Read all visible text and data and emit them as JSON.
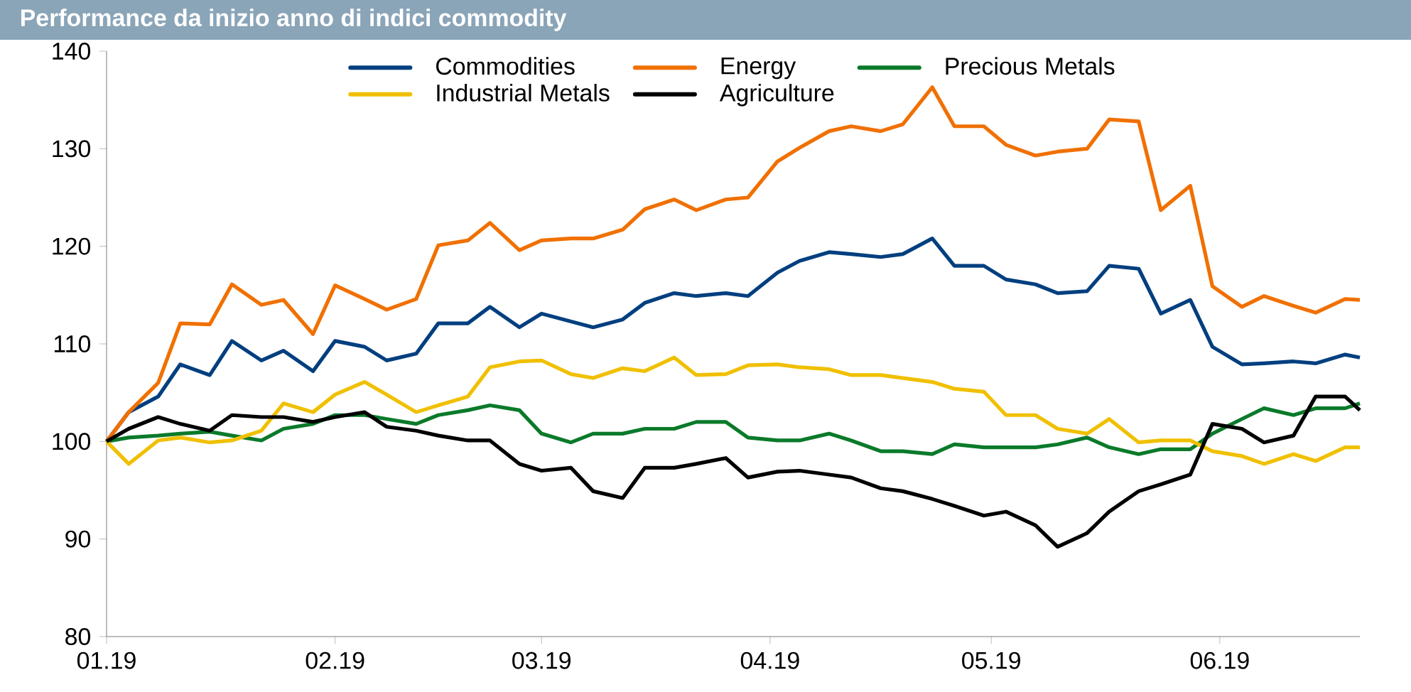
{
  "chart_data": {
    "type": "line",
    "title": "Performance da inizio anno di indici commodity",
    "x": [
      "2019-01-01",
      "2019-01-04",
      "2019-01-08",
      "2019-01-11",
      "2019-01-15",
      "2019-01-18",
      "2019-01-22",
      "2019-01-25",
      "2019-01-29",
      "2019-02-01",
      "2019-02-05",
      "2019-02-08",
      "2019-02-12",
      "2019-02-15",
      "2019-02-19",
      "2019-02-22",
      "2019-02-26",
      "2019-03-01",
      "2019-03-05",
      "2019-03-08",
      "2019-03-12",
      "2019-03-15",
      "2019-03-19",
      "2019-03-22",
      "2019-03-26",
      "2019-03-29",
      "2019-04-02",
      "2019-04-05",
      "2019-04-09",
      "2019-04-12",
      "2019-04-16",
      "2019-04-19",
      "2019-04-23",
      "2019-04-26",
      "2019-04-30",
      "2019-05-03",
      "2019-05-07",
      "2019-05-10",
      "2019-05-14",
      "2019-05-17",
      "2019-05-21",
      "2019-05-24",
      "2019-05-28",
      "2019-05-31",
      "2019-06-04",
      "2019-06-07",
      "2019-06-11",
      "2019-06-14",
      "2019-06-18",
      "2019-06-20"
    ],
    "series": [
      {
        "name": "Commodities",
        "color": "#003f7f",
        "values": [
          100,
          103,
          104.6,
          107.9,
          106.8,
          110.3,
          108.3,
          109.3,
          107.2,
          110.3,
          109.7,
          108.3,
          109,
          112.1,
          112.1,
          113.8,
          111.7,
          113.1,
          112.3,
          111.7,
          112.5,
          114.2,
          115.2,
          114.9,
          115.2,
          114.9,
          117.3,
          118.5,
          119.4,
          119.2,
          118.9,
          119.2,
          120.8,
          118,
          118,
          116.6,
          116.1,
          115.2,
          115.4,
          118,
          117.7,
          113.1,
          114.5,
          109.7,
          107.9,
          108,
          108.2,
          108,
          108.9,
          108.6
        ]
      },
      {
        "name": "Energy",
        "color": "#f07000",
        "values": [
          100,
          103,
          106,
          112.1,
          112,
          116.1,
          114,
          114.5,
          111,
          116,
          114.6,
          113.5,
          114.6,
          120.1,
          120.6,
          122.4,
          119.6,
          120.6,
          120.8,
          120.8,
          121.7,
          123.8,
          124.8,
          123.7,
          124.8,
          125,
          128.7,
          130.1,
          131.8,
          132.3,
          131.8,
          132.5,
          136.3,
          132.3,
          132.3,
          130.4,
          129.3,
          129.7,
          130,
          133,
          132.8,
          123.7,
          126.2,
          115.9,
          113.8,
          114.9,
          113.9,
          113.2,
          114.6,
          114.5
        ]
      },
      {
        "name": "Precious Metals",
        "color": "#0a7a2a",
        "values": [
          100,
          100.4,
          100.6,
          100.8,
          101,
          100.6,
          100.1,
          101.3,
          101.8,
          102.7,
          102.7,
          102.3,
          101.8,
          102.7,
          103.2,
          103.7,
          103.2,
          100.8,
          99.9,
          100.8,
          100.8,
          101.3,
          101.3,
          102,
          102,
          100.4,
          100.1,
          100.1,
          100.8,
          100.1,
          99,
          99,
          98.7,
          99.7,
          99.4,
          99.4,
          99.4,
          99.7,
          100.4,
          99.4,
          98.7,
          99.2,
          99.2,
          100.8,
          102.3,
          103.4,
          102.7,
          103.4,
          103.4,
          103.9
        ]
      },
      {
        "name": "Industrial Metals",
        "color": "#f0c000",
        "values": [
          100,
          97.7,
          100.1,
          100.4,
          99.9,
          100.1,
          101.1,
          103.9,
          103,
          104.8,
          106.1,
          104.8,
          103,
          103.7,
          104.6,
          107.6,
          108.2,
          108.3,
          106.9,
          106.5,
          107.5,
          107.2,
          108.6,
          106.8,
          106.9,
          107.8,
          107.9,
          107.6,
          107.4,
          106.8,
          106.8,
          106.5,
          106.1,
          105.4,
          105.1,
          102.7,
          102.7,
          101.3,
          100.8,
          102.3,
          99.9,
          100.1,
          100.1,
          99,
          98.5,
          97.7,
          98.7,
          98,
          99.4,
          99.4
        ]
      },
      {
        "name": "Agriculture",
        "color": "#000000",
        "values": [
          100,
          101.3,
          102.5,
          101.8,
          101.1,
          102.7,
          102.5,
          102.5,
          102,
          102.5,
          103,
          101.5,
          101.1,
          100.6,
          100.1,
          100.1,
          97.7,
          97,
          97.3,
          94.9,
          94.2,
          97.3,
          97.3,
          97.7,
          98.3,
          96.3,
          96.9,
          97,
          96.6,
          96.3,
          95.2,
          94.9,
          94.1,
          93.4,
          92.4,
          92.8,
          91.4,
          89.2,
          90.6,
          92.8,
          94.9,
          95.6,
          96.6,
          101.8,
          101.3,
          99.9,
          100.6,
          104.6,
          104.6,
          103.2
        ]
      }
    ],
    "xlim": [
      "2019-01-01",
      "2019-06-20"
    ],
    "xticks": [
      {
        "value": "2019-01-01",
        "label": "01.19"
      },
      {
        "value": "2019-02-01",
        "label": "02.19"
      },
      {
        "value": "2019-03-01",
        "label": "03.19"
      },
      {
        "value": "2019-04-01",
        "label": "04.19"
      },
      {
        "value": "2019-05-01",
        "label": "05.19"
      },
      {
        "value": "2019-06-01",
        "label": "06.19"
      }
    ],
    "ylim": [
      80,
      140
    ],
    "yticks": [
      80,
      90,
      100,
      110,
      120,
      130,
      140
    ],
    "legend": "top"
  }
}
